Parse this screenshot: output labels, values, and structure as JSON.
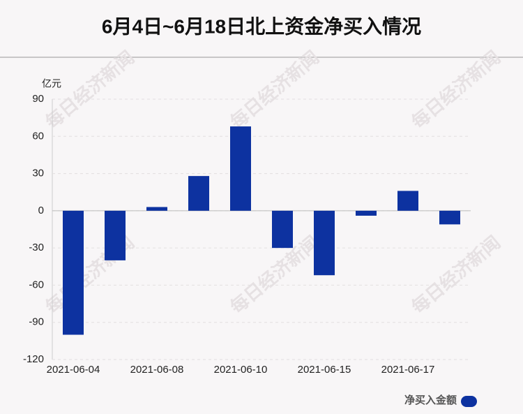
{
  "chart_data": {
    "type": "bar",
    "title": "6月4日~6月18日北上资金净买入情况",
    "watermark": "每日经济新闻",
    "y_unit": "亿元",
    "categories": [
      "2021-06-04",
      null,
      "2021-06-08",
      null,
      "2021-06-10",
      null,
      "2021-06-15",
      null,
      "2021-06-17",
      null
    ],
    "series": [
      {
        "name": "净买入金额",
        "color": "#0d32a0",
        "values": [
          -100,
          -40,
          3,
          28,
          68,
          -30,
          -52,
          -4,
          16,
          -11
        ]
      }
    ],
    "ylim": [
      -120,
      90
    ],
    "yticks": [
      -120,
      -90,
      -60,
      -30,
      0,
      30,
      60,
      90
    ],
    "grid": true
  }
}
